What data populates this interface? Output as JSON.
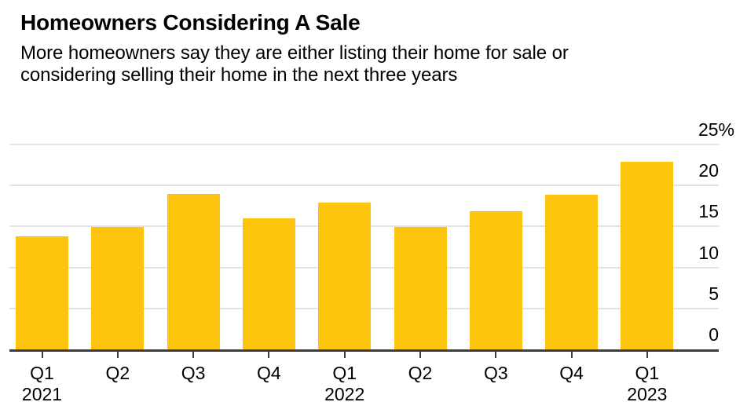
{
  "header": {
    "title": "Homeowners Considering A Sale",
    "subtitle_lines": [
      "More homeowners say they are either listing their home for sale or",
      "considering selling their home in the next three years"
    ]
  },
  "chart_data": {
    "type": "bar",
    "title": "Homeowners Considering A Sale",
    "subtitle": "More homeowners say they are either listing their home for sale or considering selling their home in the next three years",
    "categories": [
      "Q1 2021",
      "Q2 2021",
      "Q3 2021",
      "Q4 2021",
      "Q1 2022",
      "Q2 2022",
      "Q3 2022",
      "Q4 2022",
      "Q1 2023"
    ],
    "x_tick_labels": [
      [
        "Q1",
        "2021"
      ],
      [
        "Q2"
      ],
      [
        "Q3"
      ],
      [
        "Q4"
      ],
      [
        "Q1",
        "2022"
      ],
      [
        "Q2"
      ],
      [
        "Q3"
      ],
      [
        "Q4"
      ],
      [
        "Q1",
        "2023"
      ]
    ],
    "values": [
      13.8,
      14.9,
      19.0,
      16.0,
      17.9,
      14.9,
      16.9,
      18.9,
      22.9
    ],
    "unit": "%",
    "xlabel": "",
    "ylabel": "",
    "ylim": [
      0,
      25
    ],
    "y_ticks": [
      0,
      5,
      10,
      15,
      20,
      25
    ],
    "y_tick_labels": [
      "0",
      "5",
      "10",
      "15",
      "20",
      "25%"
    ],
    "grid": true,
    "legend": "none",
    "y_axis_side": "right",
    "colors": {
      "bar": "#fdc40e",
      "gridline": "#e3e3e3",
      "axis": "#3d3d3d",
      "text": "#000000",
      "background": "#ffffff"
    }
  }
}
